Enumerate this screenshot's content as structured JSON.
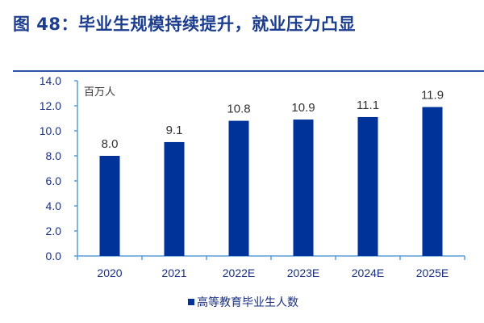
{
  "title": "图 48：毕业生规模持续提升，就业压力凸显",
  "chart_data": {
    "type": "bar",
    "categories": [
      "2020",
      "2021",
      "2022E",
      "2023E",
      "2024E",
      "2025E"
    ],
    "series": [
      {
        "name": "高等教育毕业生人数",
        "values": [
          8.0,
          9.1,
          10.8,
          10.9,
          11.1,
          11.9
        ]
      }
    ],
    "data_labels": [
      "8.0",
      "9.1",
      "10.8",
      "10.9",
      "11.1",
      "11.9"
    ],
    "ylabel": "百万人",
    "ylim": [
      0,
      14
    ],
    "yticks": [
      "0.0",
      "2.0",
      "4.0",
      "6.0",
      "8.0",
      "10.0",
      "12.0",
      "14.0"
    ],
    "grid": false,
    "legend_position": "bottom",
    "colors": {
      "bar": "#003399",
      "axis": "#5b9bd5",
      "title": "#1d3e8e"
    }
  }
}
